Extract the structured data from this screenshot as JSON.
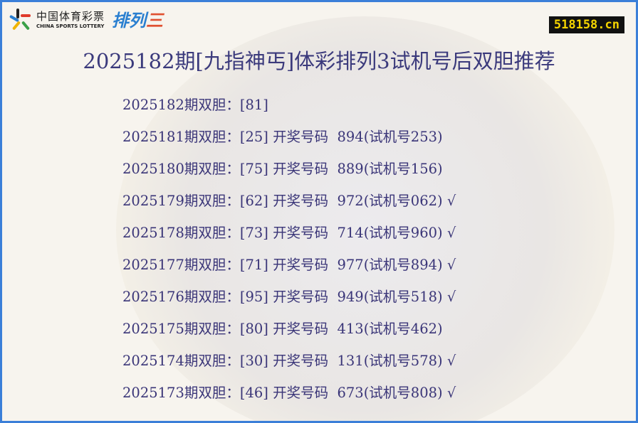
{
  "logo": {
    "cn": "中国体育彩票",
    "en": "CHINA SPORTS LOTTERY",
    "product_a": "排列",
    "product_b": "三"
  },
  "site": "518158.cn",
  "title": "2025182期[九指神丐]体彩排列3试机号后双胆推荐",
  "rows": [
    {
      "text": "2025182期双胆：[81]"
    },
    {
      "text": "2025181期双胆：[25] 开奖号码  894(试机号253)"
    },
    {
      "text": "2025180期双胆：[75] 开奖号码  889(试机号156)"
    },
    {
      "text": "2025179期双胆：[62] 开奖号码  972(试机号062) √"
    },
    {
      "text": "2025178期双胆：[73] 开奖号码  714(试机号960) √"
    },
    {
      "text": "2025177期双胆：[71] 开奖号码  977(试机号894) √"
    },
    {
      "text": "2025176期双胆：[95] 开奖号码  949(试机号518) √"
    },
    {
      "text": "2025175期双胆：[80] 开奖号码  413(试机号462)"
    },
    {
      "text": "2025174期双胆：[30] 开奖号码  131(试机号578) √"
    },
    {
      "text": "2025173期双胆：[46] 开奖号码  673(试机号808) √"
    }
  ],
  "colors": {
    "border": "#3b7fd8",
    "text": "#3a3578",
    "badge_bg": "#111111",
    "badge_text": "#f5d400"
  }
}
